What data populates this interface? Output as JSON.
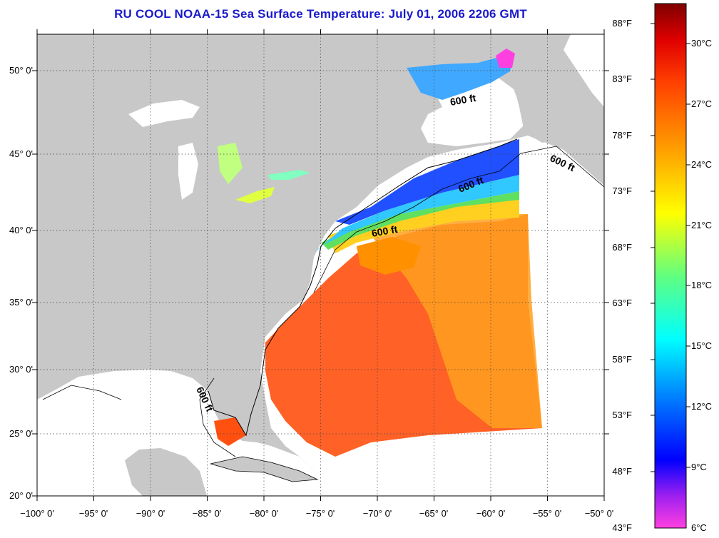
{
  "title": "RU COOL  NOAA-15  Sea Surface Temperature:  July 01, 2006 2206 GMT",
  "lat_labels": [
    "50° 0'",
    "45° 0'",
    "40° 0'",
    "35° 0'",
    "30° 0'",
    "25° 0'",
    "20° 0'"
  ],
  "lon_labels": [
    "−100° 0'",
    "−95° 0'",
    "−90° 0'",
    "−85° 0'",
    "−80° 0'",
    "−75° 0'",
    "−70° 0'",
    "−65° 0'",
    "−60° 0'",
    "−55° 0'",
    "−50° 0'"
  ],
  "isobath_labels": [
    "600 ft",
    "600 ft",
    "600 ft",
    "600 ft",
    "600 ft"
  ],
  "colorbar": {
    "fahrenheit_labels": [
      "88°F",
      "83°F",
      "78°F",
      "73°F",
      "68°F",
      "63°F",
      "58°F",
      "53°F",
      "48°F",
      "43°F"
    ],
    "celsius_labels": [
      "30°C",
      "27°C",
      "24°C",
      "21°C",
      "18°C",
      "15°C",
      "12°C",
      "9°C",
      "6°C"
    ],
    "colors": [
      "#ff40e0",
      "#a020f0",
      "#0000ff",
      "#0080ff",
      "#00ffff",
      "#60ff80",
      "#ffff00",
      "#ffa000",
      "#ff4000",
      "#e00000",
      "#800000"
    ]
  },
  "colors": {
    "land": "#c8c8c8",
    "cloud": "#ffffff",
    "title": "#1a1acc"
  }
}
